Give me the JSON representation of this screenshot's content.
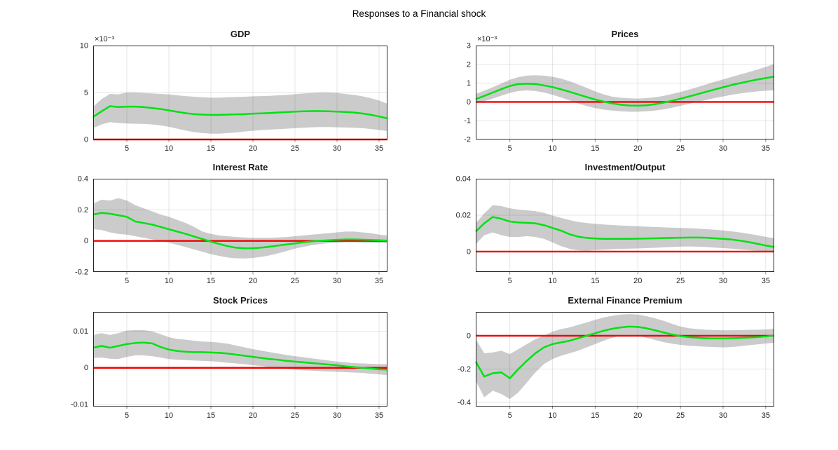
{
  "figure": {
    "title": "Responses to a Financial shock",
    "background": "#ffffff"
  },
  "style": {
    "band_color": "#cbcbcb",
    "median_color": "#00e112",
    "zero_line_color": "#f40000",
    "axis_color": "#262626",
    "grid_color": "rgba(38,38,38,0.12)",
    "tick_label_color": "#262626",
    "median_width": 2.5,
    "zero_width": 2.4
  },
  "chart_data": [
    {
      "type": "line",
      "title": "GDP",
      "exponent_label": "×10⁻³",
      "x_range": [
        1,
        36
      ],
      "ylim": [
        0,
        10
      ],
      "yticks": [
        0,
        5,
        10
      ],
      "ytick_labels": [
        "0",
        "5",
        "10"
      ],
      "xticks": [
        5,
        10,
        15,
        20,
        25,
        30,
        35
      ],
      "xtick_labels": [
        "5",
        "10",
        "15",
        "20",
        "25",
        "30",
        "35"
      ],
      "zero_line": 0,
      "median": [
        2.4,
        3.0,
        3.55,
        3.45,
        3.5,
        3.5,
        3.45,
        3.35,
        3.25,
        3.1,
        2.95,
        2.8,
        2.7,
        2.65,
        2.62,
        2.62,
        2.65,
        2.68,
        2.7,
        2.75,
        2.78,
        2.82,
        2.87,
        2.92,
        2.97,
        3.0,
        3.02,
        3.02,
        3.0,
        2.97,
        2.93,
        2.87,
        2.77,
        2.63,
        2.45,
        2.25
      ],
      "band_upper": [
        3.5,
        4.3,
        4.85,
        4.8,
        5.0,
        5.0,
        4.95,
        4.9,
        4.85,
        4.8,
        4.7,
        4.62,
        4.55,
        4.5,
        4.45,
        4.45,
        4.5,
        4.52,
        4.55,
        4.6,
        4.62,
        4.65,
        4.7,
        4.75,
        4.82,
        4.9,
        4.95,
        5.0,
        5.0,
        4.95,
        4.85,
        4.75,
        4.6,
        4.4,
        4.15,
        3.8
      ],
      "band_lower": [
        1.2,
        1.6,
        1.85,
        1.75,
        1.7,
        1.68,
        1.65,
        1.6,
        1.5,
        1.35,
        1.15,
        0.95,
        0.78,
        0.68,
        0.62,
        0.62,
        0.68,
        0.75,
        0.85,
        0.92,
        1.0,
        1.05,
        1.1,
        1.15,
        1.2,
        1.25,
        1.3,
        1.32,
        1.32,
        1.3,
        1.28,
        1.25,
        1.2,
        1.12,
        1.02,
        0.9
      ]
    },
    {
      "type": "line",
      "title": "Prices",
      "exponent_label": "×10⁻³",
      "x_range": [
        1,
        36
      ],
      "ylim": [
        -2,
        3
      ],
      "yticks": [
        -2,
        -1,
        0,
        1,
        2,
        3
      ],
      "ytick_labels": [
        "-2",
        "-1",
        "0",
        "1",
        "2",
        "3"
      ],
      "xticks": [
        5,
        10,
        15,
        20,
        25,
        30,
        35
      ],
      "xtick_labels": [
        "5",
        "10",
        "15",
        "20",
        "25",
        "30",
        "35"
      ],
      "zero_line": 0,
      "median": [
        0.15,
        0.32,
        0.5,
        0.68,
        0.85,
        0.95,
        0.97,
        0.95,
        0.88,
        0.79,
        0.67,
        0.54,
        0.4,
        0.26,
        0.13,
        0.02,
        -0.08,
        -0.15,
        -0.19,
        -0.2,
        -0.18,
        -0.12,
        -0.04,
        0.06,
        0.17,
        0.29,
        0.41,
        0.54,
        0.66,
        0.78,
        0.9,
        1.0,
        1.1,
        1.19,
        1.27,
        1.35
      ],
      "band_upper": [
        0.42,
        0.6,
        0.78,
        0.98,
        1.18,
        1.32,
        1.4,
        1.42,
        1.4,
        1.34,
        1.24,
        1.1,
        0.93,
        0.75,
        0.56,
        0.4,
        0.28,
        0.22,
        0.19,
        0.18,
        0.2,
        0.25,
        0.32,
        0.42,
        0.53,
        0.66,
        0.79,
        0.93,
        1.07,
        1.2,
        1.33,
        1.46,
        1.58,
        1.72,
        1.86,
        2.02
      ],
      "band_lower": [
        -0.08,
        0.04,
        0.18,
        0.33,
        0.48,
        0.58,
        0.61,
        0.58,
        0.5,
        0.38,
        0.24,
        0.08,
        -0.08,
        -0.22,
        -0.33,
        -0.41,
        -0.46,
        -0.5,
        -0.52,
        -0.52,
        -0.5,
        -0.46,
        -0.4,
        -0.31,
        -0.21,
        -0.1,
        0.0,
        0.1,
        0.2,
        0.29,
        0.38,
        0.45,
        0.51,
        0.56,
        0.6,
        0.62
      ]
    },
    {
      "type": "line",
      "title": "Interest Rate",
      "exponent_label": "",
      "x_range": [
        1,
        36
      ],
      "ylim": [
        -0.2,
        0.4
      ],
      "yticks": [
        -0.2,
        0,
        0.2,
        0.4
      ],
      "ytick_labels": [
        "-0.2",
        "0",
        "0.2",
        "0.4"
      ],
      "xticks": [
        5,
        10,
        15,
        20,
        25,
        30,
        35
      ],
      "xtick_labels": [
        "5",
        "10",
        "15",
        "20",
        "25",
        "30",
        "35"
      ],
      "zero_line": 0,
      "median": [
        0.17,
        0.18,
        0.175,
        0.165,
        0.155,
        0.125,
        0.115,
        0.105,
        0.09,
        0.075,
        0.06,
        0.045,
        0.028,
        0.012,
        -0.005,
        -0.02,
        -0.034,
        -0.044,
        -0.048,
        -0.047,
        -0.043,
        -0.037,
        -0.03,
        -0.023,
        -0.016,
        -0.009,
        -0.003,
        0.001,
        0.004,
        0.007,
        0.009,
        0.009,
        0.008,
        0.006,
        0.004,
        0.002
      ],
      "band_upper": [
        0.24,
        0.265,
        0.26,
        0.275,
        0.26,
        0.23,
        0.21,
        0.19,
        0.17,
        0.155,
        0.135,
        0.115,
        0.09,
        0.06,
        0.045,
        0.035,
        0.03,
        0.025,
        0.022,
        0.02,
        0.02,
        0.02,
        0.022,
        0.025,
        0.03,
        0.035,
        0.04,
        0.045,
        0.05,
        0.055,
        0.06,
        0.06,
        0.055,
        0.05,
        0.04,
        0.035
      ],
      "band_lower": [
        0.075,
        0.07,
        0.055,
        0.045,
        0.04,
        0.03,
        0.02,
        0.01,
        0.0,
        -0.012,
        -0.025,
        -0.04,
        -0.055,
        -0.07,
        -0.085,
        -0.097,
        -0.107,
        -0.112,
        -0.113,
        -0.11,
        -0.103,
        -0.093,
        -0.08,
        -0.065,
        -0.05,
        -0.038,
        -0.028,
        -0.02,
        -0.015,
        -0.012,
        -0.01,
        -0.01,
        -0.011,
        -0.012,
        -0.013,
        -0.015
      ]
    },
    {
      "type": "line",
      "title": "Investment/Output",
      "exponent_label": "",
      "x_range": [
        1,
        36
      ],
      "ylim": [
        -0.0112,
        0.04
      ],
      "yticks": [
        0,
        0.02,
        0.04
      ],
      "ytick_labels": [
        "0",
        "0.02",
        "0.04"
      ],
      "xticks": [
        5,
        10,
        15,
        20,
        25,
        30,
        35
      ],
      "xtick_labels": [
        "5",
        "10",
        "15",
        "20",
        "25",
        "30",
        "35"
      ],
      "zero_line": 0,
      "median": [
        0.011,
        0.0155,
        0.019,
        0.018,
        0.0165,
        0.016,
        0.0158,
        0.0155,
        0.0145,
        0.013,
        0.0115,
        0.0095,
        0.0082,
        0.0075,
        0.0072,
        0.007,
        0.007,
        0.007,
        0.007,
        0.0071,
        0.0072,
        0.0073,
        0.0074,
        0.0075,
        0.0076,
        0.0077,
        0.0077,
        0.0076,
        0.0073,
        0.007,
        0.0066,
        0.006,
        0.0052,
        0.0043,
        0.0033,
        0.0025
      ],
      "band_upper": [
        0.0155,
        0.021,
        0.0255,
        0.025,
        0.0238,
        0.023,
        0.0227,
        0.0222,
        0.0213,
        0.0198,
        0.0185,
        0.0173,
        0.0163,
        0.0157,
        0.0152,
        0.0149,
        0.0146,
        0.0143,
        0.0141,
        0.0139,
        0.0137,
        0.0135,
        0.0133,
        0.0131,
        0.013,
        0.0128,
        0.0126,
        0.0123,
        0.012,
        0.0116,
        0.0111,
        0.0105,
        0.0098,
        0.009,
        0.0081,
        0.0073
      ],
      "band_lower": [
        0.004,
        0.009,
        0.0105,
        0.009,
        0.008,
        0.008,
        0.0085,
        0.008,
        0.007,
        0.005,
        0.003,
        0.0015,
        0.0007,
        0.0005,
        0.0008,
        0.001,
        0.0013,
        0.0015,
        0.0016,
        0.0017,
        0.0019,
        0.0021,
        0.0023,
        0.0025,
        0.0027,
        0.0028,
        0.0027,
        0.0025,
        0.0022,
        0.0019,
        0.0016,
        0.0012,
        0.0008,
        0.0004,
        0.0,
        -0.0005
      ]
    },
    {
      "type": "line",
      "title": "Stock Prices",
      "exponent_label": "",
      "x_range": [
        1,
        36
      ],
      "ylim": [
        -0.0106,
        0.0153
      ],
      "yticks": [
        -0.01,
        0,
        0.01
      ],
      "ytick_labels": [
        "-0.01",
        "0",
        "0.01"
      ],
      "xticks": [
        5,
        10,
        15,
        20,
        25,
        30,
        35
      ],
      "xtick_labels": [
        "5",
        "10",
        "15",
        "20",
        "25",
        "30",
        "35"
      ],
      "zero_line": 0,
      "median": [
        0.0055,
        0.006,
        0.0055,
        0.006,
        0.0065,
        0.0068,
        0.0069,
        0.0067,
        0.0057,
        0.005,
        0.0046,
        0.0044,
        0.0043,
        0.0043,
        0.0042,
        0.0041,
        0.0039,
        0.0036,
        0.0033,
        0.003,
        0.0027,
        0.0024,
        0.0022,
        0.0019,
        0.0017,
        0.0015,
        0.0013,
        0.0011,
        0.0009,
        0.0007,
        0.0004,
        0.0002,
        0.0,
        -0.0002,
        -0.0004,
        -0.0005
      ],
      "band_upper": [
        0.009,
        0.0095,
        0.009,
        0.0095,
        0.0102,
        0.0103,
        0.0103,
        0.01,
        0.0092,
        0.0084,
        0.0079,
        0.0077,
        0.0074,
        0.0072,
        0.0071,
        0.0069,
        0.0066,
        0.0061,
        0.0056,
        0.0051,
        0.0047,
        0.0043,
        0.0039,
        0.0035,
        0.0032,
        0.0029,
        0.0026,
        0.0023,
        0.002,
        0.0017,
        0.0015,
        0.0013,
        0.0012,
        0.0011,
        0.001,
        0.001
      ],
      "band_lower": [
        0.0027,
        0.0028,
        0.0025,
        0.0024,
        0.003,
        0.0034,
        0.0034,
        0.0032,
        0.0028,
        0.0024,
        0.0022,
        0.0021,
        0.002,
        0.0019,
        0.0018,
        0.0016,
        0.0014,
        0.0012,
        0.001,
        0.0007,
        0.0005,
        0.0002,
        0.0,
        -0.0003,
        -0.0005,
        -0.0007,
        -0.0008,
        -0.0009,
        -0.001,
        -0.0011,
        -0.0012,
        -0.0013,
        -0.0014,
        -0.0016,
        -0.0018,
        -0.002
      ]
    },
    {
      "type": "line",
      "title": "External Finance Premium",
      "exponent_label": "",
      "x_range": [
        1,
        36
      ],
      "ylim": [
        -0.425,
        0.143
      ],
      "yticks": [
        -0.4,
        -0.2,
        0
      ],
      "ytick_labels": [
        "-0.4",
        "-0.2",
        "0"
      ],
      "xticks": [
        5,
        10,
        15,
        20,
        25,
        30,
        35
      ],
      "xtick_labels": [
        "5",
        "10",
        "15",
        "20",
        "25",
        "30",
        "35"
      ],
      "zero_line": 0,
      "median": [
        -0.155,
        -0.245,
        -0.225,
        -0.22,
        -0.255,
        -0.2,
        -0.15,
        -0.105,
        -0.07,
        -0.05,
        -0.04,
        -0.03,
        -0.015,
        0.0,
        0.015,
        0.03,
        0.042,
        0.05,
        0.055,
        0.053,
        0.045,
        0.033,
        0.02,
        0.008,
        -0.002,
        -0.008,
        -0.012,
        -0.015,
        -0.016,
        -0.016,
        -0.015,
        -0.013,
        -0.011,
        -0.008,
        -0.004,
        0.002
      ],
      "band_upper": [
        -0.02,
        -0.105,
        -0.1,
        -0.09,
        -0.11,
        -0.08,
        -0.05,
        -0.02,
        0.0,
        0.025,
        0.04,
        0.05,
        0.065,
        0.08,
        0.095,
        0.11,
        0.12,
        0.127,
        0.13,
        0.127,
        0.118,
        0.105,
        0.09,
        0.072,
        0.055,
        0.045,
        0.04,
        0.036,
        0.034,
        0.033,
        0.033,
        0.034,
        0.035,
        0.036,
        0.038,
        0.042
      ],
      "band_lower": [
        -0.27,
        -0.37,
        -0.33,
        -0.35,
        -0.38,
        -0.34,
        -0.28,
        -0.22,
        -0.17,
        -0.14,
        -0.12,
        -0.105,
        -0.09,
        -0.07,
        -0.05,
        -0.03,
        -0.012,
        0.0,
        0.005,
        0.0,
        -0.012,
        -0.025,
        -0.038,
        -0.048,
        -0.055,
        -0.06,
        -0.063,
        -0.066,
        -0.068,
        -0.07,
        -0.068,
        -0.063,
        -0.057,
        -0.052,
        -0.047,
        -0.042
      ]
    }
  ]
}
